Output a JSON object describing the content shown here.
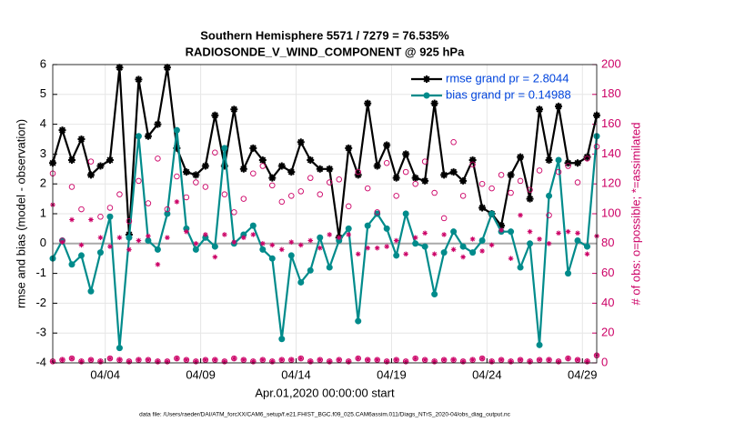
{
  "chart_data": {
    "type": "line",
    "title": "Southern Hemisphere 5571 / 7279 = 76.535%",
    "subtitle": "RADIOSONDE_V_WIND_COMPONENT @ 925 hPa",
    "x_label": "Apr.01,2020 00:00:00 start",
    "y_label": "rmse and bias (model - observation)",
    "y2_label": "# of obs: o=possible; *=assimilated",
    "footnote": "data file: /Users/raeder/DAI/ATM_forcXX/CAM6_setup/f.e21.FHIST_BGC.f09_025.CAM6assim.011/Diags_NTrS_2020-04/obs_diag_output.nc",
    "x": [
      0.25,
      0.75,
      1.25,
      1.75,
      2.25,
      2.75,
      3.25,
      3.75,
      4.25,
      4.75,
      5.25,
      5.75,
      6.25,
      6.75,
      7.25,
      7.75,
      8.25,
      8.75,
      9.25,
      9.75,
      10.25,
      10.75,
      11.25,
      11.75,
      12.25,
      12.75,
      13.25,
      13.75,
      14.25,
      14.75,
      15.25,
      15.75,
      16.25,
      16.75,
      17.25,
      17.75,
      18.25,
      18.75,
      19.25,
      19.75,
      20.25,
      20.75,
      21.25,
      21.75,
      22.25,
      22.75,
      23.25,
      23.75,
      24.25,
      24.75,
      25.25,
      25.75,
      26.25,
      26.75,
      27.25,
      27.75,
      28.25,
      28.75
    ],
    "series": [
      {
        "name": "rmse grand pr = 2.8044",
        "color": "#000000",
        "marker": "star",
        "line": true,
        "values": [
          2.7,
          3.8,
          2.8,
          3.5,
          2.3,
          2.6,
          2.8,
          5.9,
          0.3,
          5.5,
          3.6,
          4.0,
          5.9,
          3.2,
          2.4,
          2.3,
          2.6,
          4.3,
          2.6,
          4.5,
          2.5,
          3.2,
          2.8,
          2.2,
          2.6,
          2.4,
          3.4,
          2.8,
          2.5,
          2.5,
          0.2,
          3.2,
          2.3,
          4.7,
          2.6,
          3.3,
          2.2,
          3.0,
          2.2,
          2.1,
          4.7,
          2.3,
          2.4,
          2.1,
          2.8,
          1.2,
          1.0,
          0.6,
          2.3,
          2.9,
          1.5,
          4.5,
          2.8,
          4.6,
          2.7,
          2.7,
          2.9,
          4.3
        ]
      },
      {
        "name": "bias grand pr = 0.14988",
        "color": "#008b8b",
        "marker": "dot",
        "line": true,
        "values": [
          -0.5,
          0.1,
          -0.7,
          -0.4,
          -1.6,
          -0.3,
          0.9,
          -3.5,
          0.2,
          3.6,
          0.1,
          -0.2,
          1.0,
          3.8,
          0.5,
          -0.2,
          0.2,
          -0.1,
          3.2,
          0.0,
          0.3,
          0.6,
          -0.2,
          -0.5,
          -3.2,
          -0.4,
          -1.3,
          -0.9,
          0.2,
          -0.8,
          0.1,
          0.5,
          -2.6,
          0.6,
          1.0,
          0.5,
          -0.4,
          1.0,
          0.0,
          -0.1,
          -1.7,
          -0.3,
          0.4,
          -0.1,
          -0.3,
          0.1,
          1.0,
          0.4,
          0.4,
          -0.8,
          0.0,
          -3.4,
          1.6,
          2.8,
          -1.0,
          0.1,
          -0.1,
          3.6
        ]
      },
      {
        "color": "#cc0066",
        "marker": "circle",
        "line": false,
        "axis": "y2",
        "values": [
          127,
          82,
          118,
          103,
          135,
          98,
          104,
          113,
          95,
          122,
          107,
          137,
          103,
          125,
          111,
          121,
          118,
          141,
          113,
          101,
          110,
          127,
          132,
          119,
          108,
          112,
          115,
          124,
          113,
          121,
          123,
          105,
          128,
          117,
          101,
          134,
          112,
          128,
          120,
          135,
          114,
          97,
          148,
          112,
          133,
          120,
          117,
          126,
          114,
          122,
          116,
          129,
          99,
          128,
          132,
          121,
          137,
          145
        ]
      },
      {
        "color": "#cc0066",
        "marker": "asterisk",
        "line": false,
        "axis": "y2",
        "values": [
          106,
          81,
          96,
          79,
          96,
          84,
          78,
          84,
          76,
          82,
          85,
          66,
          84,
          108,
          88,
          80,
          86,
          71,
          86,
          81,
          84,
          86,
          80,
          79,
          76,
          81,
          79,
          82,
          77,
          86,
          84,
          86,
          73,
          77,
          77,
          78,
          82,
          73,
          84,
          87,
          73,
          86,
          76,
          71,
          83,
          75,
          79,
          89,
          70,
          99,
          88,
          83,
          80,
          87,
          88,
          87,
          73,
          85
        ]
      },
      {
        "color": "#cc0066",
        "marker": "circle",
        "line": false,
        "axis": "y2",
        "values": [
          1,
          2,
          3,
          1,
          2,
          1,
          3,
          2,
          1,
          2,
          2,
          1,
          1,
          3,
          2,
          1,
          2,
          2,
          1,
          3,
          2,
          1,
          2,
          1,
          2,
          2,
          3,
          1,
          2,
          1,
          2,
          1,
          3,
          2,
          2,
          1,
          2,
          1,
          3,
          2,
          1,
          2,
          2,
          1,
          2,
          3,
          1,
          2,
          1,
          2,
          1,
          2,
          2,
          1,
          3,
          2,
          1,
          5
        ]
      },
      {
        "color": "#cc0066",
        "marker": "asterisk",
        "line": false,
        "axis": "y2",
        "values": [
          1,
          2,
          3,
          1,
          2,
          1,
          3,
          2,
          1,
          2,
          2,
          1,
          1,
          3,
          2,
          1,
          2,
          2,
          1,
          3,
          2,
          1,
          2,
          1,
          2,
          2,
          3,
          1,
          2,
          1,
          2,
          1,
          3,
          2,
          2,
          1,
          2,
          1,
          3,
          2,
          1,
          2,
          2,
          1,
          2,
          3,
          1,
          2,
          1,
          2,
          1,
          2,
          2,
          1,
          3,
          2,
          1,
          5
        ]
      }
    ],
    "xlim": [
      0.25,
      28.75
    ],
    "xticks": [
      {
        "value": 3,
        "label": "04/04"
      },
      {
        "value": 8,
        "label": "04/09"
      },
      {
        "value": 13,
        "label": "04/14"
      },
      {
        "value": 18,
        "label": "04/19"
      },
      {
        "value": 23,
        "label": "04/24"
      },
      {
        "value": 28,
        "label": "04/29"
      }
    ],
    "ylim": [
      -4,
      6
    ],
    "yticks": [
      -4,
      -3,
      -2,
      -1,
      0,
      1,
      2,
      3,
      4,
      5,
      6
    ],
    "y2lim": [
      0,
      200
    ],
    "y2ticks": [
      0,
      20,
      40,
      60,
      80,
      100,
      120,
      140,
      160,
      180,
      200
    ],
    "y2_color": "#cc0066",
    "legend_color": "#0044dd",
    "grid": true,
    "zero_line": true,
    "legend": "upper right"
  }
}
